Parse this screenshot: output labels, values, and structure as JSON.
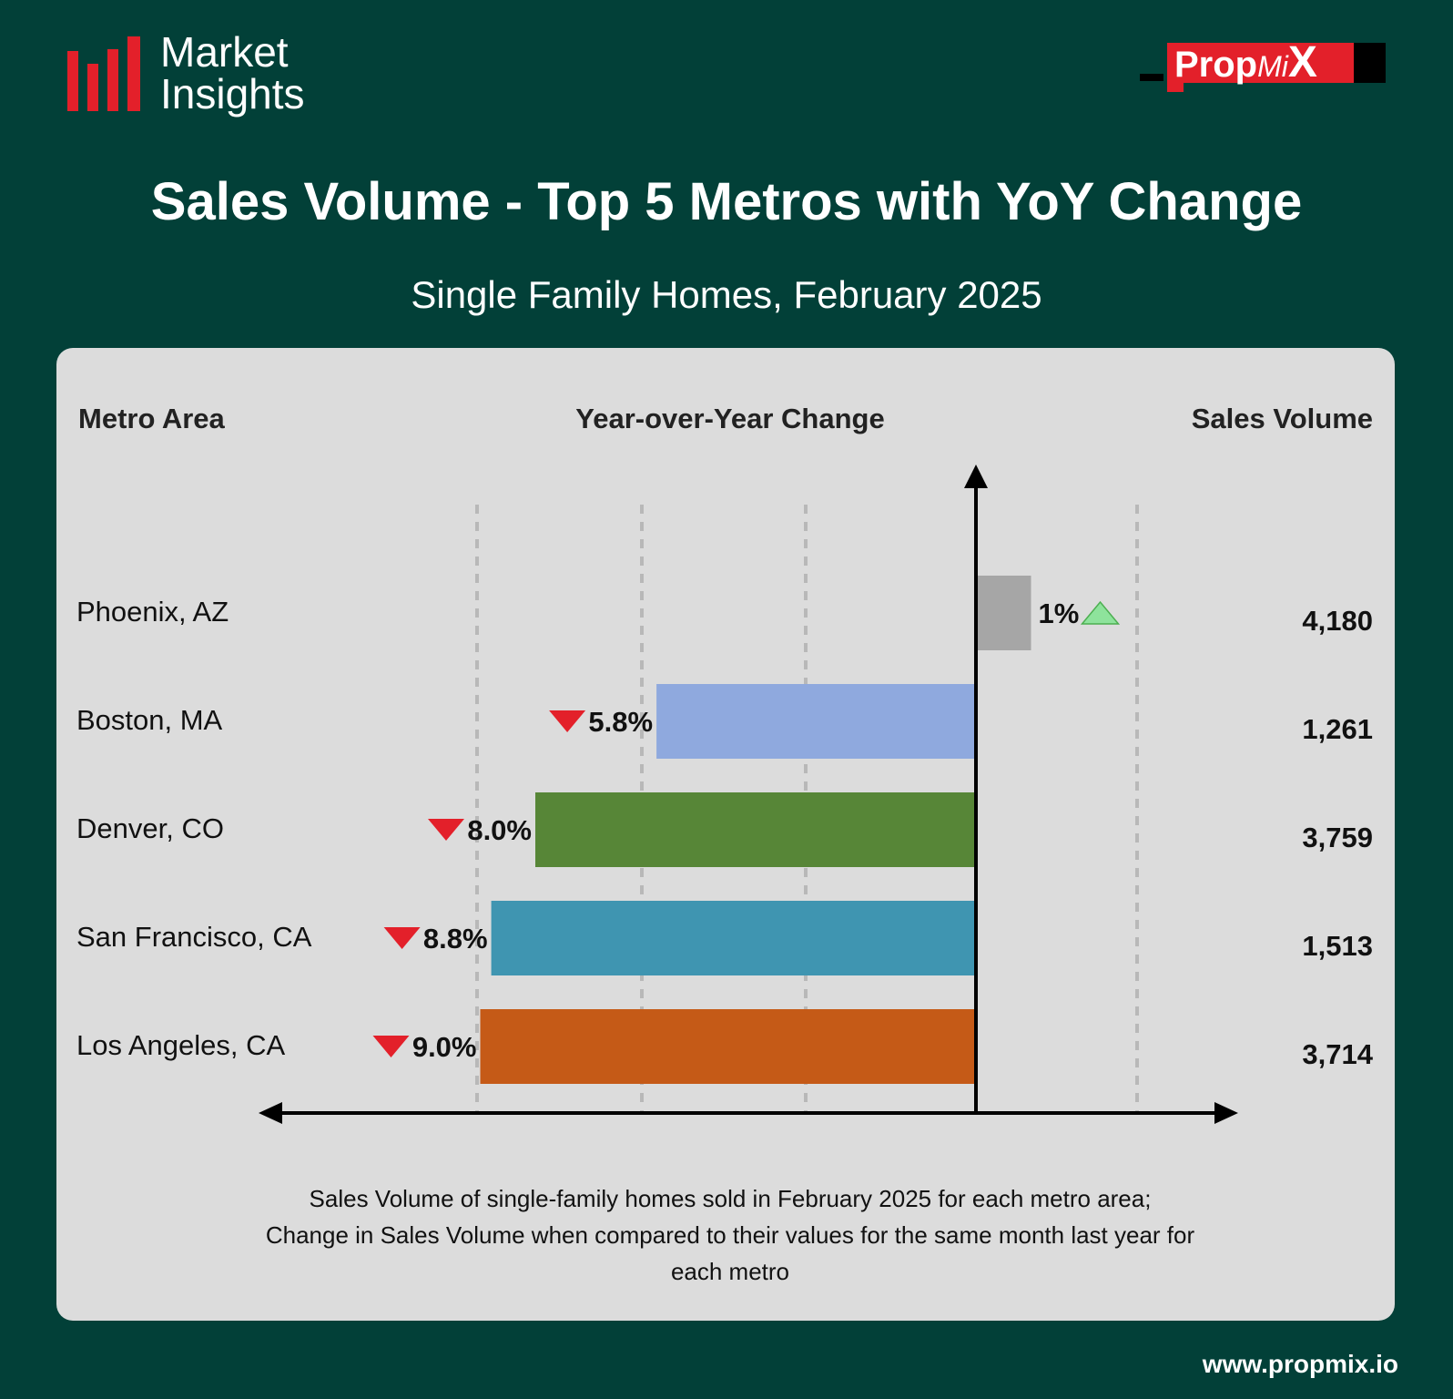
{
  "header": {
    "logo_line1": "Market",
    "logo_line2": "Insights",
    "brand_prefix": "Prop",
    "brand_mi": "Mi",
    "brand_x": "X"
  },
  "title": "Sales Volume - Top 5 Metros with YoY Change",
  "subtitle": "Single Family Homes, February 2025",
  "columns": {
    "metro": "Metro Area",
    "change": "Year-over-Year Change",
    "volume": "Sales Volume"
  },
  "chart_data": {
    "type": "bar",
    "orientation": "horizontal",
    "categories": [
      "Phoenix, AZ",
      "Boston, MA",
      "Denver, CO",
      "San Francisco, CA",
      "Los Angeles, CA"
    ],
    "series": [
      {
        "values": [
          1.0,
          -5.8,
          -8.0,
          -8.8,
          -9.0
        ],
        "labels": [
          "1%",
          "5.8%",
          "8.0%",
          "8.8%",
          "9.0%"
        ],
        "colors": [
          "#a6a6a6",
          "#8fa9de",
          "#578637",
          "#3f95b1",
          "#c55a17"
        ]
      }
    ],
    "sales_volume": [
      "4,180",
      "1,261",
      "3,759",
      "1,513",
      "3,714"
    ],
    "colors": {
      "up_arrow": "#8ee39c",
      "down_arrow": "#e3202a"
    },
    "footnote_lines": [
      "Sales Volume of single-family homes sold in February 2025 for each metro area;",
      "Change in Sales Volume when compared to their values for the same month last year for",
      "each metro"
    ]
  },
  "website": "www.propmix.io"
}
